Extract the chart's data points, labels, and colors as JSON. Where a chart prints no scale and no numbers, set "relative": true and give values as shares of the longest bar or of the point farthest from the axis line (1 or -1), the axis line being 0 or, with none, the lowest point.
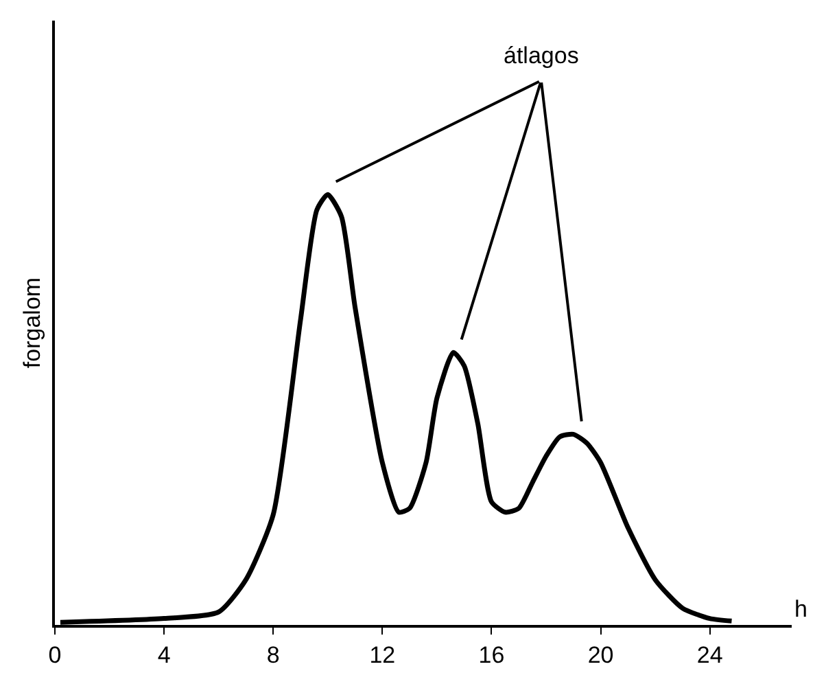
{
  "chart_data": {
    "type": "line",
    "relative": true,
    "xlabel": "h",
    "ylabel": "forgalom",
    "x": [
      0.2,
      4,
      6,
      7,
      8,
      9,
      9.6,
      10,
      10.5,
      11,
      12,
      12.6,
      13,
      13.6,
      14,
      14.6,
      15,
      15.5,
      16,
      16.5,
      17,
      17.5,
      18,
      18.5,
      19,
      19.5,
      20,
      21,
      22,
      23,
      24,
      24.8
    ],
    "series": [
      {
        "color": "#000000",
        "values": [
          0.006,
          0.015,
          0.03,
          0.105,
          0.256,
          0.708,
          0.964,
          1,
          0.949,
          0.738,
          0.377,
          0.262,
          0.271,
          0.377,
          0.527,
          0.633,
          0.602,
          0.467,
          0.286,
          0.262,
          0.271,
          0.331,
          0.392,
          0.437,
          0.443,
          0.422,
          0.377,
          0.226,
          0.105,
          0.039,
          0.015,
          0.009
        ]
      }
    ],
    "xlim": [
      0,
      27
    ],
    "xticks": [
      0,
      4,
      8,
      12,
      16,
      20,
      24
    ],
    "annotations": [
      "átlagos"
    ],
    "marker": "none",
    "line_style": "solid"
  }
}
